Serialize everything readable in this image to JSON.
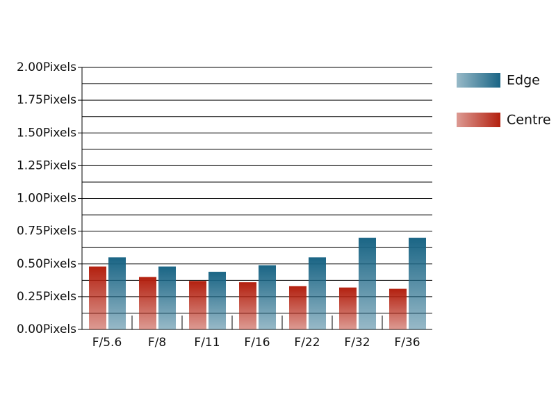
{
  "chart_data": {
    "type": "bar",
    "categories": [
      "F/5.6",
      "F/8",
      "F/11",
      "F/16",
      "F/22",
      "F/32",
      "F/36"
    ],
    "series": [
      {
        "name": "Centre",
        "color": "#b3200f",
        "values": [
          0.48,
          0.4,
          0.37,
          0.36,
          0.33,
          0.32,
          0.31
        ]
      },
      {
        "name": "Edge",
        "color": "#1a6585",
        "values": [
          0.55,
          0.48,
          0.44,
          0.49,
          0.55,
          0.7,
          0.7
        ]
      }
    ],
    "ylim": [
      0,
      2
    ],
    "yticks": [
      {
        "value": 0,
        "label": "0.00Pixels"
      },
      {
        "value": 0.25,
        "label": "0.25Pixels"
      },
      {
        "value": 0.5,
        "label": "0.50Pixels"
      },
      {
        "value": 0.75,
        "label": "0.75Pixels"
      },
      {
        "value": 1,
        "label": "1.00Pixels"
      },
      {
        "value": 1.25,
        "label": "1.25Pixels"
      },
      {
        "value": 1.5,
        "label": "1.50Pixels"
      },
      {
        "value": 1.75,
        "label": "1.75Pixels"
      },
      {
        "value": 2,
        "label": "2.00Pixels"
      }
    ],
    "yminorticks": [
      0.125,
      0.375,
      0.625,
      0.875,
      1.125,
      1.375,
      1.625,
      1.875
    ],
    "grid": true,
    "legend": "right"
  }
}
